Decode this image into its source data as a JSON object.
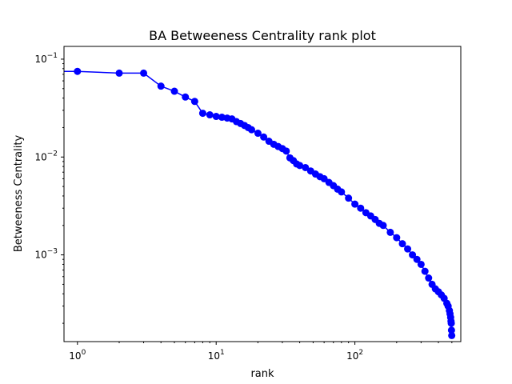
{
  "chart_data": {
    "type": "line",
    "title": "BA Betweeness Centrality rank plot",
    "xlabel": "rank",
    "ylabel": "Betweeness Centrality",
    "xscale": "log",
    "yscale": "log",
    "xlim": [
      0.8,
      580
    ],
    "ylim": [
      0.00013,
      0.135
    ],
    "xticks": [
      {
        "value": 1,
        "base": "10",
        "exp": "0"
      },
      {
        "value": 10,
        "base": "10",
        "exp": "1"
      },
      {
        "value": 100,
        "base": "10",
        "exp": "2"
      }
    ],
    "yticks": [
      {
        "value": 0.001,
        "base": "10",
        "exp": "−3"
      },
      {
        "value": 0.01,
        "base": "10",
        "exp": "−2"
      },
      {
        "value": 0.1,
        "base": "10",
        "exp": "−1"
      }
    ],
    "grid": false,
    "legend": "none",
    "color": "#0000ff",
    "marker": "circle",
    "series": [
      {
        "x": [
          0,
          1,
          2,
          3,
          4,
          5,
          6,
          7,
          8,
          9,
          10,
          11,
          12,
          13,
          14,
          15,
          16,
          17,
          18,
          20,
          22,
          24,
          26,
          28,
          30,
          32,
          34,
          36,
          38,
          40,
          44,
          48,
          52,
          56,
          60,
          65,
          70,
          75,
          80,
          90,
          100,
          110,
          120,
          130,
          140,
          150,
          160,
          180,
          200,
          220,
          240,
          260,
          280,
          300,
          320,
          340,
          360,
          380,
          400,
          420,
          440,
          460,
          470,
          480,
          485,
          490,
          493,
          495,
          497,
          499
        ],
        "y": [
          0.075,
          0.075,
          0.072,
          0.072,
          0.053,
          0.047,
          0.041,
          0.037,
          0.028,
          0.027,
          0.026,
          0.0255,
          0.025,
          0.0245,
          0.023,
          0.022,
          0.021,
          0.02,
          0.019,
          0.0175,
          0.016,
          0.0145,
          0.0135,
          0.0128,
          0.0122,
          0.0115,
          0.0098,
          0.0092,
          0.0085,
          0.0082,
          0.0078,
          0.0072,
          0.0067,
          0.0063,
          0.006,
          0.0055,
          0.0051,
          0.0047,
          0.0044,
          0.0038,
          0.0033,
          0.003,
          0.0027,
          0.0025,
          0.0023,
          0.0021,
          0.002,
          0.0017,
          0.0015,
          0.0013,
          0.00115,
          0.001,
          0.0009,
          0.0008,
          0.00068,
          0.00058,
          0.0005,
          0.00045,
          0.00042,
          0.00039,
          0.00036,
          0.00032,
          0.0003,
          0.00027,
          0.00025,
          0.00023,
          0.00021,
          0.0002,
          0.00017,
          0.00015
        ]
      }
    ]
  }
}
